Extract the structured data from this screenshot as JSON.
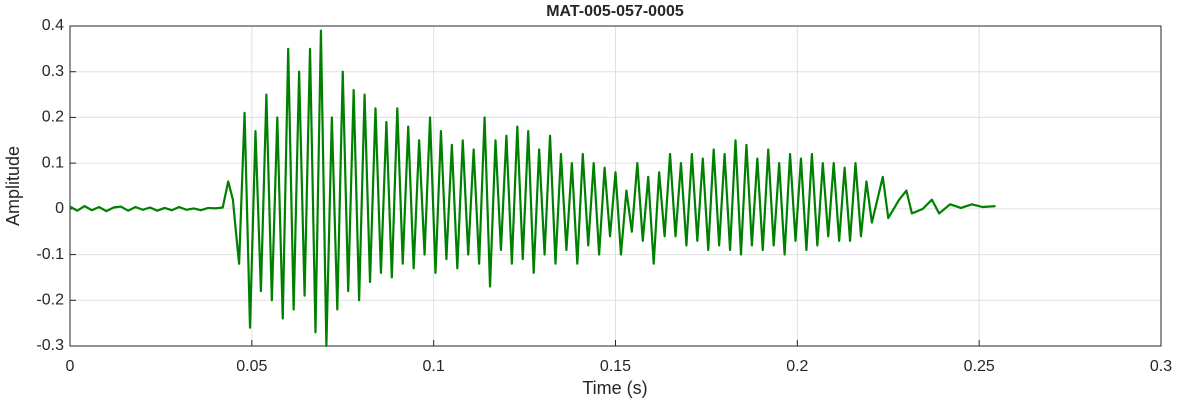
{
  "chart_data": {
    "type": "line",
    "title": "MAT-005-057-0005",
    "xlabel": "Time (s)",
    "ylabel": "Amplitude",
    "color": "#008000",
    "grid": true,
    "xlim": [
      0,
      0.3
    ],
    "xticks": [
      0,
      0.05,
      0.1,
      0.15,
      0.2,
      0.25,
      0.3
    ],
    "ylim": [
      -0.3,
      0.4
    ],
    "yticks": [
      -0.3,
      -0.2,
      -0.1,
      0,
      0.1,
      0.2,
      0.3,
      0.4
    ],
    "x": [
      0,
      0.002,
      0.004,
      0.006,
      0.008,
      0.01,
      0.012,
      0.014,
      0.016,
      0.018,
      0.02,
      0.022,
      0.024,
      0.026,
      0.028,
      0.03,
      0.032,
      0.034,
      0.036,
      0.038,
      0.04,
      0.042,
      0.0435,
      0.0448,
      0.0455,
      0.0465,
      0.048,
      0.0495,
      0.051,
      0.0525,
      0.054,
      0.0555,
      0.057,
      0.0585,
      0.06,
      0.0615,
      0.063,
      0.0645,
      0.066,
      0.0675,
      0.069,
      0.0705,
      0.072,
      0.0735,
      0.075,
      0.0765,
      0.078,
      0.0795,
      0.081,
      0.0825,
      0.084,
      0.0855,
      0.087,
      0.0885,
      0.09,
      0.0915,
      0.093,
      0.0945,
      0.096,
      0.0975,
      0.099,
      0.1005,
      0.102,
      0.1035,
      0.105,
      0.1065,
      0.108,
      0.1095,
      0.111,
      0.1125,
      0.114,
      0.1155,
      0.117,
      0.1185,
      0.12,
      0.1215,
      0.123,
      0.1245,
      0.126,
      0.1275,
      0.129,
      0.1305,
      0.132,
      0.1335,
      0.135,
      0.1365,
      0.138,
      0.1395,
      0.141,
      0.1425,
      0.144,
      0.1455,
      0.147,
      0.1485,
      0.15,
      0.1515,
      0.153,
      0.1545,
      0.156,
      0.1575,
      0.159,
      0.1605,
      0.162,
      0.1635,
      0.165,
      0.1665,
      0.168,
      0.1695,
      0.171,
      0.1725,
      0.174,
      0.1755,
      0.177,
      0.1785,
      0.18,
      0.1815,
      0.183,
      0.1845,
      0.186,
      0.1875,
      0.189,
      0.1905,
      0.192,
      0.1935,
      0.195,
      0.1965,
      0.198,
      0.1995,
      0.201,
      0.2025,
      0.204,
      0.2055,
      0.207,
      0.2085,
      0.21,
      0.2115,
      0.213,
      0.2145,
      0.216,
      0.2175,
      0.219,
      0.2205,
      0.2235,
      0.225,
      0.228,
      0.23,
      0.2315,
      0.2345,
      0.237,
      0.239,
      0.242,
      0.245,
      0.248,
      0.251,
      0.2545
    ],
    "values": [
      0.005,
      -0.004,
      0.006,
      -0.003,
      0.004,
      -0.005,
      0.003,
      0.005,
      -0.004,
      0.004,
      -0.002,
      0.003,
      -0.004,
      0.002,
      -0.003,
      0.004,
      -0.002,
      0.001,
      -0.003,
      0.002,
      0.001,
      0.003,
      0.06,
      0.02,
      -0.04,
      -0.12,
      0.21,
      -0.26,
      0.17,
      -0.18,
      0.25,
      -0.2,
      0.2,
      -0.24,
      0.35,
      -0.22,
      0.3,
      -0.19,
      0.35,
      -0.27,
      0.39,
      -0.3,
      0.2,
      -0.22,
      0.3,
      -0.18,
      0.26,
      -0.2,
      0.25,
      -0.16,
      0.22,
      -0.14,
      0.19,
      -0.15,
      0.22,
      -0.12,
      0.18,
      -0.13,
      0.15,
      -0.1,
      0.2,
      -0.14,
      0.17,
      -0.11,
      0.14,
      -0.13,
      0.15,
      -0.1,
      0.13,
      -0.12,
      0.2,
      -0.17,
      0.15,
      -0.09,
      0.16,
      -0.12,
      0.18,
      -0.11,
      0.17,
      -0.14,
      0.13,
      -0.1,
      0.16,
      -0.12,
      0.12,
      -0.09,
      0.1,
      -0.12,
      0.12,
      -0.08,
      0.1,
      -0.1,
      0.09,
      -0.06,
      0.08,
      -0.1,
      0.04,
      -0.05,
      0.1,
      -0.07,
      0.07,
      -0.12,
      0.08,
      -0.06,
      0.12,
      -0.06,
      0.1,
      -0.08,
      0.12,
      -0.07,
      0.11,
      -0.09,
      0.13,
      -0.08,
      0.12,
      -0.09,
      0.15,
      -0.1,
      0.14,
      -0.08,
      0.11,
      -0.09,
      0.13,
      -0.08,
      0.1,
      -0.1,
      0.12,
      -0.07,
      0.11,
      -0.09,
      0.12,
      -0.08,
      0.1,
      -0.06,
      0.1,
      -0.07,
      0.09,
      -0.07,
      0.1,
      -0.06,
      0.06,
      -0.03,
      0.07,
      -0.02,
      0.02,
      0.04,
      -0.01,
      0,
      0.02,
      -0.01,
      0.01,
      0.002,
      0.01,
      0.004,
      0.006
    ]
  }
}
